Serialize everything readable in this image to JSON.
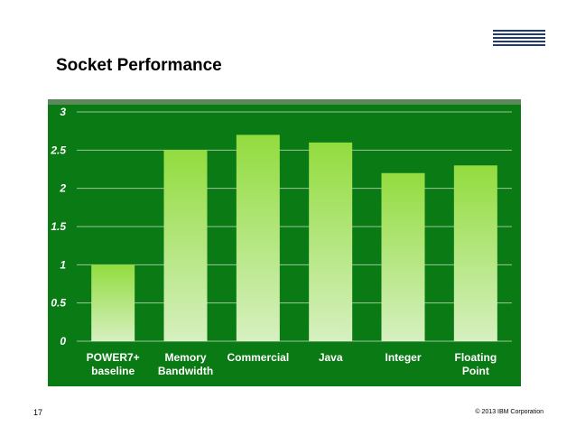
{
  "slide": {
    "title": "Socket Performance",
    "slide_number": "17",
    "copyright": "© 2013 IBM Corporation",
    "logo_text": "IBM"
  },
  "colors": {
    "chart_background": "#0a7a14",
    "chart_top_band": "#5a8a5a",
    "gridline": "#9ac79a",
    "bar_top": "#92dc3e",
    "bar_bottom": "#d6f0c0",
    "logo": "#1f3b73"
  },
  "chart_data": {
    "type": "bar",
    "categories": [
      [
        "POWER7+",
        "baseline"
      ],
      [
        "Memory",
        "Bandwidth"
      ],
      [
        "Commercial"
      ],
      [
        "Java"
      ],
      [
        "Integer"
      ],
      [
        "Floating",
        "Point"
      ]
    ],
    "values": [
      1.0,
      2.5,
      2.7,
      2.6,
      2.2,
      2.3
    ],
    "yticks": [
      "0",
      "0.5",
      "1",
      "1.5",
      "2",
      "2.5",
      "3"
    ],
    "ylim": [
      0,
      3
    ],
    "grid": true,
    "legend": "none"
  }
}
